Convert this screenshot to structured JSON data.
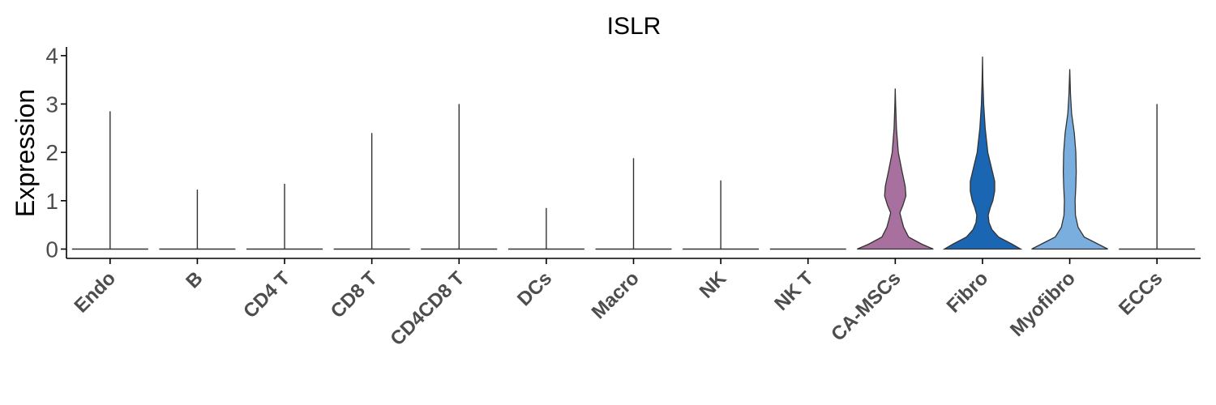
{
  "chart_data": {
    "type": "violin",
    "title": "ISLR",
    "ylabel": "Expression",
    "xlabel": "",
    "ylim": [
      -0.2,
      4.15
    ],
    "yticks": [
      0,
      1,
      2,
      3,
      4
    ],
    "grid": false,
    "legend": "none",
    "categories": [
      "Endo",
      "B",
      "CD4 T",
      "CD8 T",
      "CD4CD8 T",
      "DCs",
      "Macro",
      "NK",
      "NK T",
      "CA-MSCs",
      "Fibro",
      "Myofibro",
      "ECCs"
    ],
    "series": [
      {
        "category": "Endo",
        "max": 2.85,
        "color": "#333333",
        "profile": []
      },
      {
        "category": "B",
        "max": 1.23,
        "color": "#333333",
        "profile": []
      },
      {
        "category": "CD4 T",
        "max": 1.35,
        "color": "#333333",
        "profile": []
      },
      {
        "category": "CD8 T",
        "max": 2.4,
        "color": "#333333",
        "profile": []
      },
      {
        "category": "CD4CD8 T",
        "max": 3.0,
        "color": "#333333",
        "profile": []
      },
      {
        "category": "DCs",
        "max": 0.85,
        "color": "#333333",
        "profile": []
      },
      {
        "category": "Macro",
        "max": 1.88,
        "color": "#333333",
        "profile": []
      },
      {
        "category": "NK",
        "max": 1.42,
        "color": "#333333",
        "profile": []
      },
      {
        "category": "NK T",
        "max": 0.0,
        "color": "#333333",
        "profile": []
      },
      {
        "category": "CA-MSCs",
        "max": 3.32,
        "color": "#a8709e",
        "profile": [
          [
            0,
            1.0
          ],
          [
            0.1,
            0.7
          ],
          [
            0.25,
            0.35
          ],
          [
            0.45,
            0.22
          ],
          [
            0.6,
            0.17
          ],
          [
            0.75,
            0.12
          ],
          [
            0.9,
            0.2
          ],
          [
            1.1,
            0.28
          ],
          [
            1.3,
            0.26
          ],
          [
            1.6,
            0.18
          ],
          [
            2.0,
            0.08
          ],
          [
            2.5,
            0.03
          ],
          [
            3.0,
            0.01
          ],
          [
            3.32,
            0.0
          ]
        ]
      },
      {
        "category": "Fibro",
        "max": 3.98,
        "color": "#1a66b3",
        "profile": [
          [
            0,
            1.0
          ],
          [
            0.1,
            0.78
          ],
          [
            0.25,
            0.42
          ],
          [
            0.4,
            0.25
          ],
          [
            0.55,
            0.17
          ],
          [
            0.7,
            0.15
          ],
          [
            0.85,
            0.2
          ],
          [
            1.0,
            0.27
          ],
          [
            1.2,
            0.32
          ],
          [
            1.4,
            0.32
          ],
          [
            1.6,
            0.26
          ],
          [
            2.0,
            0.14
          ],
          [
            2.5,
            0.07
          ],
          [
            3.0,
            0.03
          ],
          [
            3.5,
            0.01
          ],
          [
            3.98,
            0.0
          ]
        ]
      },
      {
        "category": "Myofibro",
        "max": 3.72,
        "color": "#7aaede",
        "profile": [
          [
            0,
            1.0
          ],
          [
            0.1,
            0.75
          ],
          [
            0.25,
            0.38
          ],
          [
            0.45,
            0.22
          ],
          [
            0.7,
            0.15
          ],
          [
            1.0,
            0.14
          ],
          [
            1.3,
            0.16
          ],
          [
            1.6,
            0.17
          ],
          [
            2.0,
            0.16
          ],
          [
            2.4,
            0.12
          ],
          [
            2.8,
            0.05
          ],
          [
            3.2,
            0.02
          ],
          [
            3.72,
            0.0
          ]
        ]
      },
      {
        "category": "ECCs",
        "max": 3.0,
        "color": "#333333",
        "profile": []
      }
    ]
  }
}
